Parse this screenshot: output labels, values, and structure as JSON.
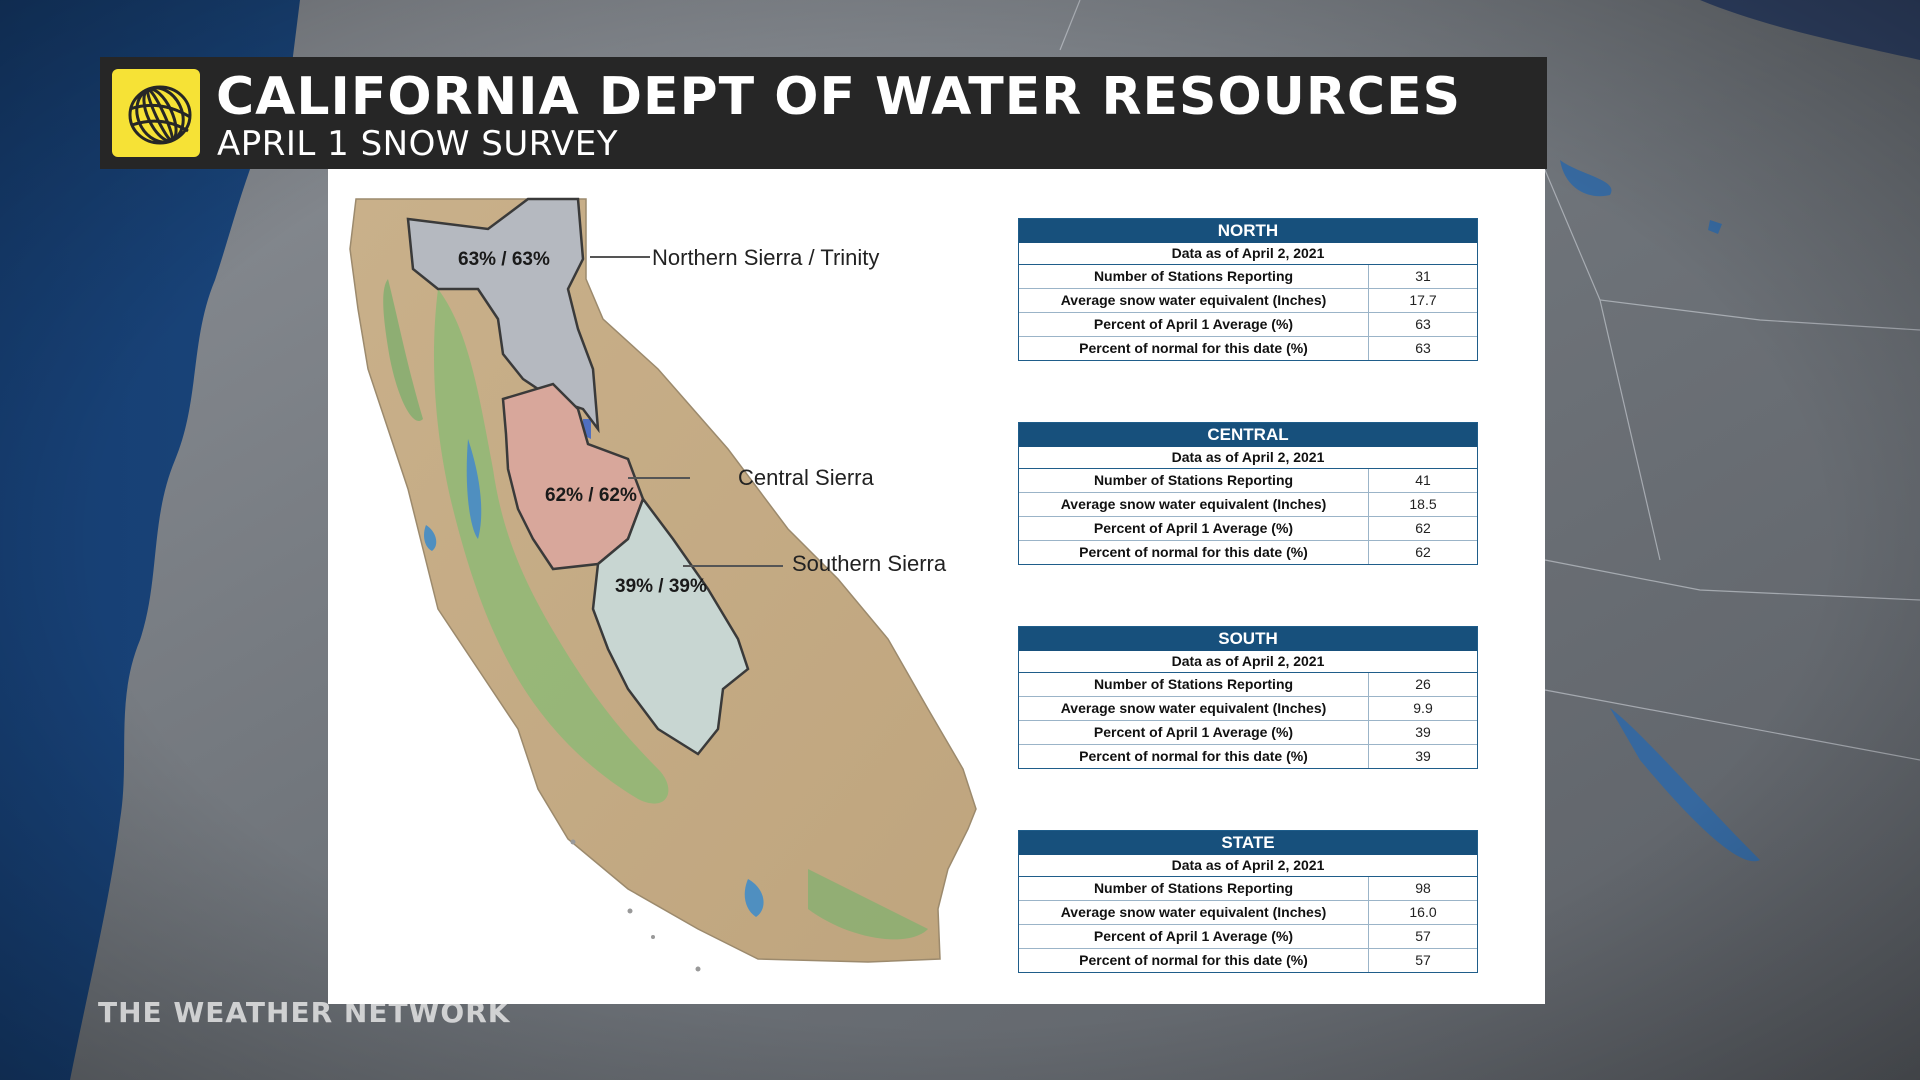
{
  "header": {
    "title": "CALIFORNIA DEPT OF WATER RESOURCES",
    "subtitle": "APRIL 1 SNOW SURVEY",
    "logo_icon": "weather-network-swirl-icon",
    "logo_color": "#f6e236"
  },
  "watermark": "THE WEATHER NETWORK",
  "map": {
    "regions": [
      {
        "name": "Northern Sierra / Trinity",
        "percent_label": "63% / 63%",
        "color": "#b5b9c0"
      },
      {
        "name": "Central Sierra",
        "percent_label": "62% / 62%",
        "color": "#d8a79b"
      },
      {
        "name": "Southern Sierra",
        "percent_label": "39% / 39%",
        "color": "#c8d6d2"
      }
    ]
  },
  "tables": [
    {
      "region": "NORTH",
      "date_line": "Data as of April 2, 2021",
      "rows": [
        {
          "label": "Number of Stations Reporting",
          "value": "31"
        },
        {
          "label": "Average snow water equivalent (Inches)",
          "value": "17.7"
        },
        {
          "label": "Percent of April 1 Average (%)",
          "value": "63"
        },
        {
          "label": "Percent of normal for this date (%)",
          "value": "63"
        }
      ]
    },
    {
      "region": "CENTRAL",
      "date_line": "Data as of April 2, 2021",
      "rows": [
        {
          "label": "Number of Stations Reporting",
          "value": "41"
        },
        {
          "label": "Average snow water equivalent (Inches)",
          "value": "18.5"
        },
        {
          "label": "Percent of April 1 Average (%)",
          "value": "62"
        },
        {
          "label": "Percent of normal for this date (%)",
          "value": "62"
        }
      ]
    },
    {
      "region": "SOUTH",
      "date_line": "Data as of April 2, 2021",
      "rows": [
        {
          "label": "Number of Stations Reporting",
          "value": "26"
        },
        {
          "label": "Average snow water equivalent (Inches)",
          "value": "9.9"
        },
        {
          "label": "Percent of April 1 Average (%)",
          "value": "39"
        },
        {
          "label": "Percent of normal for this date (%)",
          "value": "39"
        }
      ]
    },
    {
      "region": "STATE",
      "date_line": "Data as of April 2, 2021",
      "rows": [
        {
          "label": "Number of Stations Reporting",
          "value": "98"
        },
        {
          "label": "Average snow water equivalent (Inches)",
          "value": "16.0"
        },
        {
          "label": "Percent of April 1 Average (%)",
          "value": "57"
        },
        {
          "label": "Percent of normal for this date (%)",
          "value": "57"
        }
      ]
    }
  ],
  "colors": {
    "table_header": "#17507c",
    "title_bar": "#262626",
    "ocean": "#1f4f84"
  }
}
